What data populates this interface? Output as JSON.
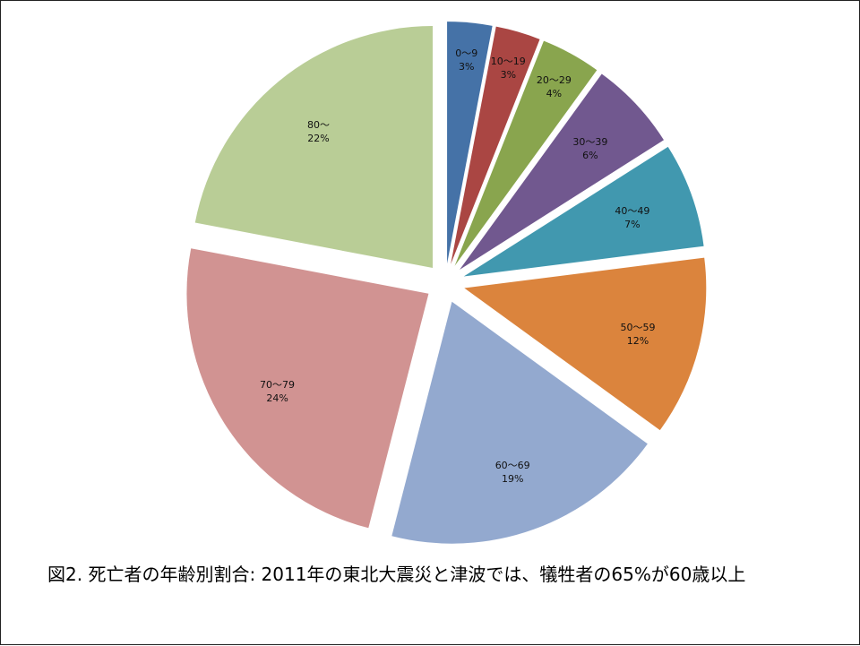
{
  "caption": "図2. 死亡者の年齢別割合: 2011年の東北大震災と津波では、犠牲者の65%が60歳以上",
  "chart_data": {
    "type": "pie",
    "title": "",
    "start_angle_deg": 0,
    "direction": "clockwise",
    "exploded": true,
    "slices": [
      {
        "label": "0～9",
        "pct_label": "3%",
        "value": 3,
        "color": "#4572A7"
      },
      {
        "label": "10～19",
        "pct_label": "3%",
        "value": 3,
        "color": "#AA4643"
      },
      {
        "label": "20～29",
        "pct_label": "4%",
        "value": 4,
        "color": "#89A54E"
      },
      {
        "label": "30～39",
        "pct_label": "6%",
        "value": 6,
        "color": "#71588F"
      },
      {
        "label": "40～49",
        "pct_label": "7%",
        "value": 7,
        "color": "#4198AF"
      },
      {
        "label": "50～59",
        "pct_label": "12%",
        "value": 12,
        "color": "#DB843D"
      },
      {
        "label": "60～69",
        "pct_label": "19%",
        "value": 19,
        "color": "#93A9CF"
      },
      {
        "label": "70～79",
        "pct_label": "24%",
        "value": 24,
        "color": "#D19392"
      },
      {
        "label": "80～",
        "pct_label": "22%",
        "value": 22,
        "color": "#B9CD96"
      }
    ]
  }
}
